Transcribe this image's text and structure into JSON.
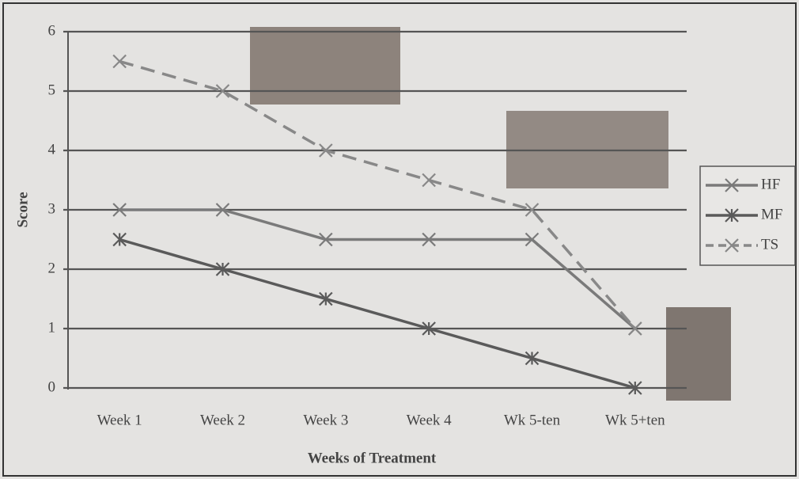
{
  "chart_data": {
    "type": "line",
    "x_label": "Weeks of Treatment",
    "y_label": "Score",
    "categories": [
      "Week 1",
      "Week 2",
      "Week 3",
      "Week 4",
      "Wk 5-ten",
      "Wk 5+ten"
    ],
    "series": [
      {
        "name": "HF",
        "color": "#7a7a7a",
        "dashed": false,
        "marker": "x",
        "values": [
          3,
          3,
          2.5,
          2.5,
          2.5,
          1
        ]
      },
      {
        "name": "MF",
        "color": "#5a5a5a",
        "dashed": false,
        "marker": "star",
        "values": [
          2.5,
          2,
          1.5,
          1,
          0.5,
          0
        ]
      },
      {
        "name": "TS",
        "color": "#888888",
        "dashed": true,
        "marker": "x",
        "values": [
          5.5,
          5,
          4,
          3.5,
          3,
          1
        ]
      }
    ],
    "ylim": [
      0,
      6
    ],
    "yticks": [
      0,
      1,
      2,
      3,
      4,
      5,
      6
    ],
    "grid": true,
    "legend": "right"
  }
}
